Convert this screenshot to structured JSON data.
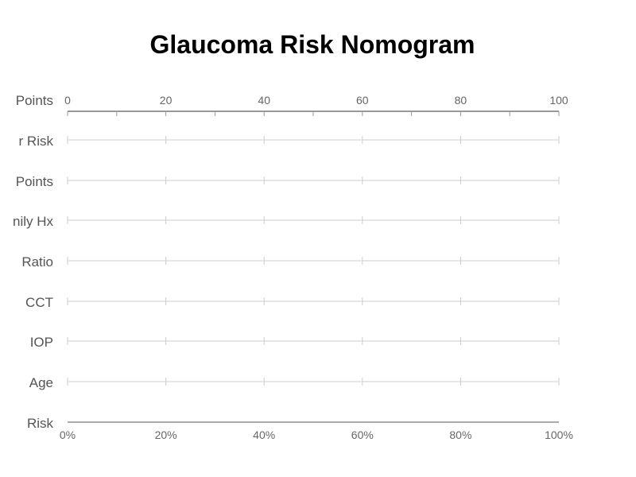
{
  "chart_data": {
    "type": "nomogram",
    "title": "Glaucoma Risk Nomogram",
    "points_axis": {
      "label": "Points",
      "range": [
        0,
        100
      ],
      "tick_labels": [
        "0",
        "20",
        "40",
        "60",
        "80",
        "100"
      ],
      "minor_step": 10
    },
    "rows": [
      "r Risk",
      "Points",
      "nily Hx",
      "Ratio",
      "CCT",
      "IOP",
      "Age"
    ],
    "row_tick_values": [
      0,
      20,
      40,
      60,
      80,
      100
    ],
    "risk_axis": {
      "label": "Risk",
      "range": [
        0,
        100
      ],
      "tick_labels": [
        "0%",
        "20%",
        "40%",
        "60%",
        "80%",
        "100%"
      ]
    },
    "grid": false,
    "legend": "none",
    "colors": {
      "axis": "#999999",
      "row_line": "#cccccc",
      "risk_line": "#aaaaaa",
      "label": "#555555",
      "tick_label": "#666666"
    }
  }
}
